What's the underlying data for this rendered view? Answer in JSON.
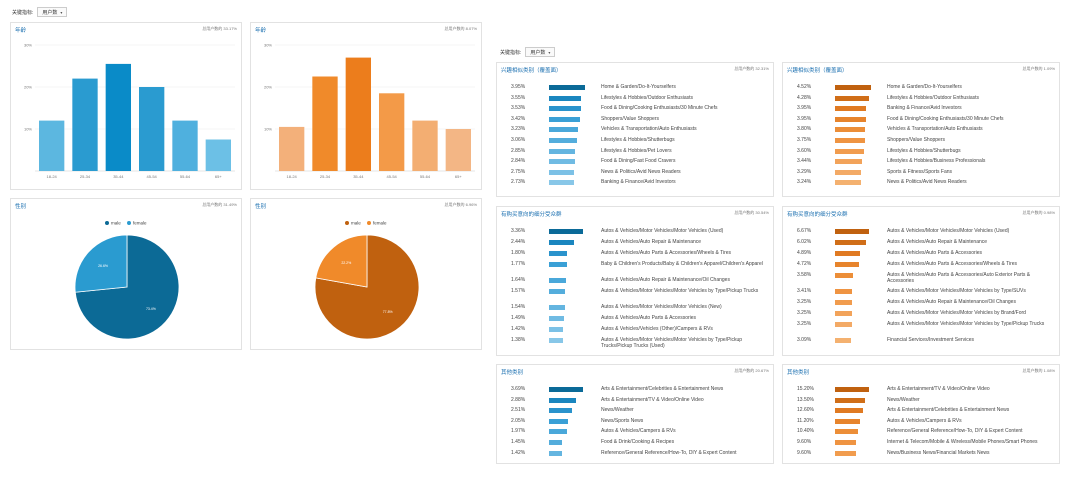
{
  "filter_left": {
    "label": "关键指标:",
    "value": "用户数"
  },
  "filter_right": {
    "label": "关键指标:",
    "value": "用户数"
  },
  "age_left": {
    "title": "年龄",
    "meta": "总用户数的 33.17%",
    "color": "#2a9bd0",
    "color_light": "#5cb7e0",
    "color_dark": "#0a7fbf",
    "chart_data": {
      "type": "bar",
      "categories": [
        "18-24",
        "25-34",
        "35-44",
        "45-54",
        "55-64",
        "65+"
      ],
      "values": [
        12,
        22,
        25.5,
        20,
        12,
        7.5
      ],
      "ylim": [
        0,
        30
      ],
      "yticks": [
        "30%",
        "20%",
        "10%"
      ]
    }
  },
  "age_right": {
    "title": "年龄",
    "meta": "总用户数的 8.07%",
    "chart_data": {
      "type": "bar",
      "categories": [
        "18-24",
        "25-34",
        "35-44",
        "45-54",
        "55-64",
        "65+"
      ],
      "values": [
        10.5,
        22.5,
        27,
        18.5,
        12,
        10
      ],
      "ylim": [
        0,
        30
      ],
      "yticks": [
        "30%",
        "20%",
        "10%"
      ]
    }
  },
  "gender_left": {
    "title": "性别",
    "meta": "总用户数的 31.49%",
    "chart_data": {
      "type": "pie",
      "labels": [
        "male",
        "female"
      ],
      "values": [
        73.4,
        26.6
      ],
      "value_labels": [
        "73.4%",
        "26.6%"
      ],
      "colors": [
        "#0c6a96",
        "#2a9bd0"
      ]
    }
  },
  "gender_right": {
    "title": "性别",
    "meta": "总用户数的 6.96%",
    "chart_data": {
      "type": "pie",
      "labels": [
        "male",
        "female"
      ],
      "values": [
        77.8,
        22.2
      ],
      "value_labels": [
        "77.8%",
        "22.2%"
      ],
      "colors": [
        "#c0610f",
        "#f08a2a"
      ]
    }
  },
  "affinity_left": {
    "title": "兴趣相似类别（覆盖面）",
    "meta": "总用户数的 32.31%",
    "rows": [
      {
        "pct": "3.95%",
        "v": 3.95,
        "label": "Home & Garden/Do-It-Yourselfers"
      },
      {
        "pct": "3.55%",
        "v": 3.55,
        "label": "Lifestyles & Hobbies/Outdoor Enthusiasts"
      },
      {
        "pct": "3.53%",
        "v": 3.53,
        "label": "Food & Dining/Cooking Enthusiasts/30 Minute Chefs"
      },
      {
        "pct": "3.42%",
        "v": 3.42,
        "label": "Shoppers/Value Shoppers"
      },
      {
        "pct": "3.23%",
        "v": 3.23,
        "label": "Vehicles & Transportation/Auto Enthusiasts"
      },
      {
        "pct": "3.06%",
        "v": 3.06,
        "label": "Lifestyles & Hobbies/Shutterbugs"
      },
      {
        "pct": "2.85%",
        "v": 2.85,
        "label": "Lifestyles & Hobbies/Pet Lovers"
      },
      {
        "pct": "2.84%",
        "v": 2.84,
        "label": "Food & Dining/Fast Food Cravers"
      },
      {
        "pct": "2.75%",
        "v": 2.75,
        "label": "News & Politics/Avid News Readers"
      },
      {
        "pct": "2.73%",
        "v": 2.73,
        "label": "Banking & Finance/Avid Investors"
      }
    ]
  },
  "affinity_right": {
    "title": "兴趣相似类别（覆盖面）",
    "meta": "总用户数的 1.09%",
    "rows": [
      {
        "pct": "4.52%",
        "v": 4.52,
        "label": "Home & Garden/Do-It-Yourselfers"
      },
      {
        "pct": "4.28%",
        "v": 4.28,
        "label": "Lifestyles & Hobbies/Outdoor Enthusiasts"
      },
      {
        "pct": "3.95%",
        "v": 3.95,
        "label": "Banking & Finance/Avid Investors"
      },
      {
        "pct": "3.95%",
        "v": 3.95,
        "label": "Food & Dining/Cooking Enthusiasts/30 Minute Chefs"
      },
      {
        "pct": "3.80%",
        "v": 3.8,
        "label": "Vehicles & Transportation/Auto Enthusiasts"
      },
      {
        "pct": "3.75%",
        "v": 3.75,
        "label": "Shoppers/Value Shoppers"
      },
      {
        "pct": "3.60%",
        "v": 3.6,
        "label": "Lifestyles & Hobbies/Shutterbugs"
      },
      {
        "pct": "3.44%",
        "v": 3.44,
        "label": "Lifestyles & Hobbies/Business Professionals"
      },
      {
        "pct": "3.29%",
        "v": 3.29,
        "label": "Sports & Fitness/Sports Fans"
      },
      {
        "pct": "3.24%",
        "v": 3.24,
        "label": "News & Politics/Avid News Readers"
      }
    ]
  },
  "inmarket_left": {
    "title": "有购买意向的细分受众群",
    "meta": "总用户数的 30.54%",
    "rows": [
      {
        "pct": "3.36%",
        "v": 3.36,
        "label": "Autos & Vehicles/Motor Vehicles/Motor Vehicles (Used)"
      },
      {
        "pct": "2.44%",
        "v": 2.44,
        "label": "Autos & Vehicles/Auto Repair & Maintenance"
      },
      {
        "pct": "1.80%",
        "v": 1.8,
        "label": "Autos & Vehicles/Auto Parts & Accessories/Wheels & Tires"
      },
      {
        "pct": "1.77%",
        "v": 1.77,
        "label": "Baby & Children's Products/Baby & Children's Apparel/Children's Apparel"
      },
      {
        "pct": "1.64%",
        "v": 1.64,
        "label": "Autos & Vehicles/Auto Repair & Maintenance/Oil Changes"
      },
      {
        "pct": "1.57%",
        "v": 1.57,
        "label": "Autos & Vehicles/Motor Vehicles/Motor Vehicles by Type/Pickup Trucks"
      },
      {
        "pct": "1.54%",
        "v": 1.54,
        "label": "Autos & Vehicles/Motor Vehicles/Motor Vehicles (New)"
      },
      {
        "pct": "1.49%",
        "v": 1.49,
        "label": "Autos & Vehicles/Auto Parts & Accessories"
      },
      {
        "pct": "1.42%",
        "v": 1.42,
        "label": "Autos & Vehicles/Vehicles (Other)/Campers & RVs"
      },
      {
        "pct": "1.38%",
        "v": 1.38,
        "label": "Autos & Vehicles/Motor Vehicles/Motor Vehicles by Type/Pickup Trucks/Pickup Trucks (Used)"
      }
    ]
  },
  "inmarket_right": {
    "title": "有购买意向的细分受众群",
    "meta": "总用户数的 0.98%",
    "rows": [
      {
        "pct": "6.67%",
        "v": 6.67,
        "label": "Autos & Vehicles/Motor Vehicles/Motor Vehicles (Used)"
      },
      {
        "pct": "6.02%",
        "v": 6.02,
        "label": "Autos & Vehicles/Auto Repair & Maintenance"
      },
      {
        "pct": "4.89%",
        "v": 4.89,
        "label": "Autos & Vehicles/Auto Parts & Accessories"
      },
      {
        "pct": "4.72%",
        "v": 4.72,
        "label": "Autos & Vehicles/Auto Parts & Accessories/Wheels & Tires"
      },
      {
        "pct": "3.58%",
        "v": 3.58,
        "label": "Autos & Vehicles/Auto Parts & Accessories/Auto Exterior Parts & Accessories"
      },
      {
        "pct": "3.41%",
        "v": 3.41,
        "label": "Autos & Vehicles/Motor Vehicles/Motor Vehicles by Type/SUVs"
      },
      {
        "pct": "3.25%",
        "v": 3.25,
        "label": "Autos & Vehicles/Auto Repair & Maintenance/Oil Changes"
      },
      {
        "pct": "3.25%",
        "v": 3.25,
        "label": "Autos & Vehicles/Motor Vehicles/Motor Vehicles by Brand/Ford"
      },
      {
        "pct": "3.25%",
        "v": 3.25,
        "label": "Autos & Vehicles/Motor Vehicles/Motor Vehicles by Type/Pickup Trucks"
      },
      {
        "pct": "3.09%",
        "v": 3.09,
        "label": "Financial Services/Investment Services"
      }
    ]
  },
  "other_left": {
    "title": "其他类别",
    "meta": "总用户数的 20.67%",
    "rows": [
      {
        "pct": "3.69%",
        "v": 3.69,
        "label": "Arts & Entertainment/Celebrities & Entertainment News"
      },
      {
        "pct": "2.88%",
        "v": 2.88,
        "label": "Arts & Entertainment/TV & Video/Online Video"
      },
      {
        "pct": "2.51%",
        "v": 2.51,
        "label": "News/Weather"
      },
      {
        "pct": "2.05%",
        "v": 2.05,
        "label": "News/Sports News"
      },
      {
        "pct": "1.97%",
        "v": 1.97,
        "label": "Autos & Vehicles/Campers & RVs"
      },
      {
        "pct": "1.45%",
        "v": 1.45,
        "label": "Food & Drink/Cooking & Recipes"
      },
      {
        "pct": "1.42%",
        "v": 1.42,
        "label": "Reference/General Reference/How-To, DIY & Expert Content"
      }
    ]
  },
  "other_right": {
    "title": "其他类别",
    "meta": "总用户数的 1.08%",
    "rows": [
      {
        "pct": "15.20%",
        "v": 15.2,
        "label": "Arts & Entertainment/TV & Video/Online Video"
      },
      {
        "pct": "13.50%",
        "v": 13.5,
        "label": "News/Weather"
      },
      {
        "pct": "12.60%",
        "v": 12.6,
        "label": "Arts & Entertainment/Celebrities & Entertainment News"
      },
      {
        "pct": "11.20%",
        "v": 11.2,
        "label": "Autos & Vehicles/Campers & RVs"
      },
      {
        "pct": "10.40%",
        "v": 10.4,
        "label": "Reference/General Reference/How-To, DIY & Expert Content"
      },
      {
        "pct": "9.60%",
        "v": 9.6,
        "label": "Internet & Telecom/Mobile & Wireless/Mobile Phones/Smart Phones"
      },
      {
        "pct": "9.60%",
        "v": 9.6,
        "label": "News/Business News/Financial Markets News"
      }
    ]
  }
}
